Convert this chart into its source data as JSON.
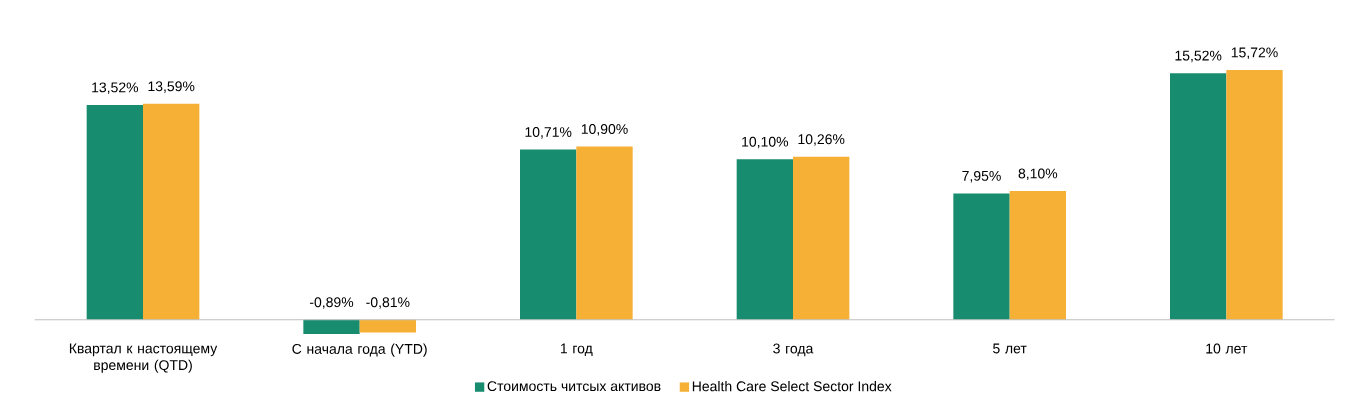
{
  "chart_data": {
    "type": "bar",
    "categories": [
      "Квартал к настоящему времени (QTD)",
      "С начала года (YTD)",
      "1 год",
      "3 года",
      "5 лет",
      "10 лет"
    ],
    "series": [
      {
        "name": "Стоимость читсых активов",
        "color": "#178c6e",
        "values": [
          13.52,
          -0.89,
          10.71,
          10.1,
          7.95,
          15.52
        ],
        "value_labels": [
          "13,52%",
          "-0,89%",
          "10,71%",
          "10,10%",
          "7,95%",
          "15,52%"
        ]
      },
      {
        "name": "Health Care Select Sector Index",
        "color": "#f5b035",
        "values": [
          13.59,
          -0.81,
          10.9,
          10.26,
          8.1,
          15.72
        ],
        "value_labels": [
          "13,59%",
          "-0,81%",
          "10,90%",
          "10,26%",
          "8,10%",
          "15,72%"
        ]
      }
    ],
    "legend": "bottom"
  }
}
